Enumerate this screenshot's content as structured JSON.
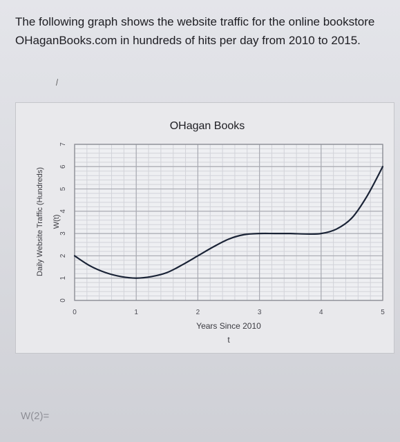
{
  "question": {
    "text": "The following graph shows the website traffic for the online bookstore OHaganBooks.com in hundreds of hits per day from 2010 to 2015."
  },
  "answer_prompt": "W(2)=",
  "chart_data": {
    "type": "line",
    "title": "OHagan Books",
    "xlabel": "Years Since 2010",
    "xvar": "t",
    "ylabel": "Daily Website Traffic (Hundreds)",
    "yvar": "W(t)",
    "xlim": [
      0,
      5
    ],
    "ylim": [
      0,
      7
    ],
    "x_ticks": [
      "0",
      "1",
      "2",
      "3",
      "4",
      "5"
    ],
    "y_ticks": [
      "0",
      "1",
      "2",
      "3",
      "4",
      "5",
      "6",
      "7"
    ],
    "grid": true,
    "series": [
      {
        "x": [
          0,
          0.25,
          0.5,
          0.75,
          1,
          1.25,
          1.5,
          1.75,
          2,
          2.25,
          2.5,
          2.75,
          3,
          3.25,
          3.5,
          3.75,
          4,
          4.25,
          4.5,
          4.75,
          5
        ],
        "values": [
          2,
          1.55,
          1.25,
          1.07,
          1,
          1.07,
          1.25,
          1.6,
          2,
          2.4,
          2.75,
          2.95,
          3,
          3,
          3,
          2.98,
          3,
          3.2,
          3.7,
          4.7,
          6
        ],
        "color": "#1a2336"
      }
    ]
  }
}
